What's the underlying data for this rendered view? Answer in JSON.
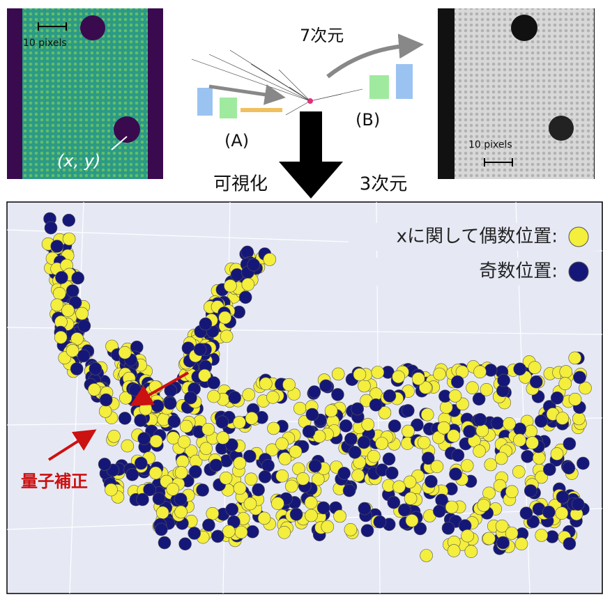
{
  "left_image": {
    "scale_label": "10 pixels",
    "point_label": "(x, y)"
  },
  "network": {
    "latent_dim": "7次元",
    "encoder_label": "(A)",
    "decoder_label": "(B)"
  },
  "right_image": {
    "scale_label": "10 pixels"
  },
  "arrow": {
    "left_label": "可視化",
    "right_label": "3次元"
  },
  "scatter": {
    "legend": [
      {
        "label": "xに関して偶数位置:",
        "color": "#f4ee3c"
      },
      {
        "label": "奇数位置:",
        "color": "#151778"
      }
    ],
    "annotation": "量子補正"
  }
}
